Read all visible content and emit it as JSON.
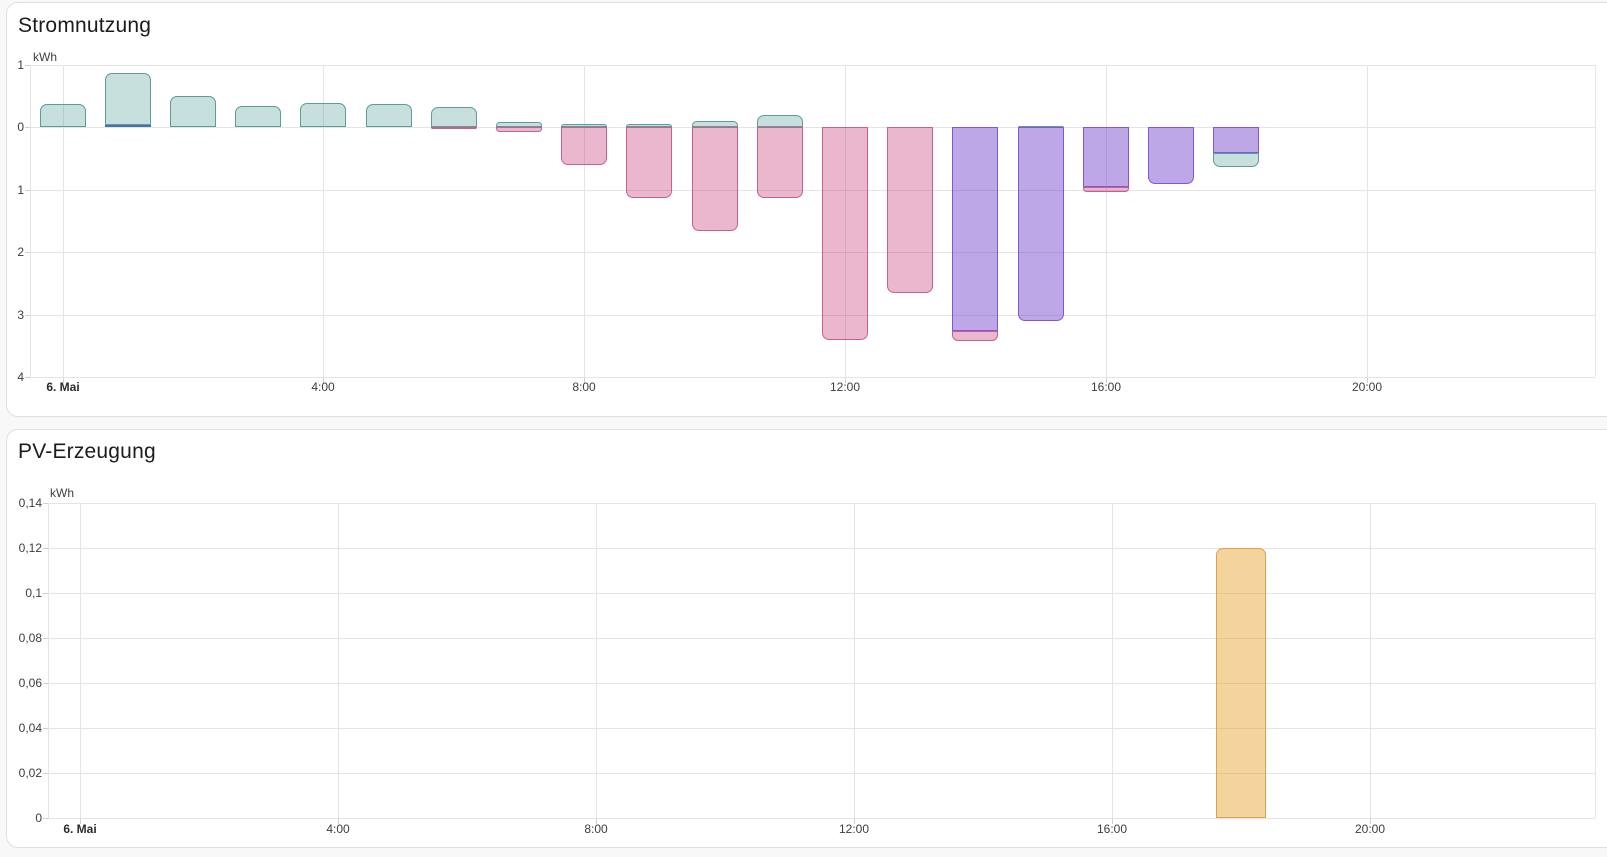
{
  "page": {
    "background": "#f8f8f8",
    "card_background": "#ffffff",
    "card_border": "#e0e0e0",
    "grid_color": "#e4e4e4",
    "tick_text_color": "#3d3d3d",
    "title_color": "#1c1c1c"
  },
  "colors": {
    "teal": {
      "fill": "rgba(80,160,150,0.32)",
      "border": "#5a9e97"
    },
    "blue": {
      "fill": "rgba(50,90,170,0.55)",
      "border": "#4a6fb5"
    },
    "pink": {
      "fill": "rgba(195,50,110,0.35)",
      "border": "#c7608e"
    },
    "purple": {
      "fill": "rgba(110,60,200,0.45)",
      "border": "#8257d6"
    },
    "orange": {
      "fill": "rgba(230,150,20,0.42)",
      "border": "#d8a54b"
    }
  },
  "chart_data": [
    {
      "type": "bar",
      "stacked": true,
      "title": "Stromnutzung",
      "unit": "kWh",
      "ylabel": "kWh",
      "xlabel": "",
      "date_label": "6. Mai",
      "ylim": [
        -4,
        1
      ],
      "xlim_hours": [
        -0.5,
        23.5
      ],
      "grid": true,
      "legend": "none",
      "y_ticks": [
        {
          "value": 1,
          "label": "1"
        },
        {
          "value": 0,
          "label": "0"
        },
        {
          "value": -1,
          "label": "1"
        },
        {
          "value": -2,
          "label": "2"
        },
        {
          "value": -3,
          "label": "3"
        },
        {
          "value": -4,
          "label": "4"
        }
      ],
      "x_ticks": [
        {
          "hour": 0,
          "label": "6. Mai",
          "bold": true
        },
        {
          "hour": 4,
          "label": "4:00"
        },
        {
          "hour": 8,
          "label": "8:00"
        },
        {
          "hour": 12,
          "label": "12:00"
        },
        {
          "hour": 16,
          "label": "16:00"
        },
        {
          "hour": 20,
          "label": "20:00"
        }
      ],
      "bars": [
        {
          "hour": 0,
          "segments": [
            {
              "color": "teal",
              "value": 0.37
            }
          ]
        },
        {
          "hour": 1,
          "segments": [
            {
              "color": "blue",
              "value": 0.04
            },
            {
              "color": "teal",
              "value": 0.83
            }
          ]
        },
        {
          "hour": 2,
          "segments": [
            {
              "color": "teal",
              "value": 0.51
            }
          ]
        },
        {
          "hour": 3,
          "segments": [
            {
              "color": "teal",
              "value": 0.35
            }
          ]
        },
        {
          "hour": 4,
          "segments": [
            {
              "color": "teal",
              "value": 0.39
            }
          ]
        },
        {
          "hour": 5,
          "segments": [
            {
              "color": "teal",
              "value": 0.38
            }
          ]
        },
        {
          "hour": 6,
          "segments": [
            {
              "color": "teal",
              "value": 0.33
            },
            {
              "color": "pink",
              "value": -0.03
            }
          ]
        },
        {
          "hour": 7,
          "segments": [
            {
              "color": "teal",
              "value": 0.08
            },
            {
              "color": "pink",
              "value": -0.08
            }
          ]
        },
        {
          "hour": 8,
          "segments": [
            {
              "color": "teal",
              "value": 0.06
            },
            {
              "color": "pink",
              "value": -0.61
            }
          ]
        },
        {
          "hour": 9,
          "segments": [
            {
              "color": "teal",
              "value": 0.06
            },
            {
              "color": "pink",
              "value": -1.13
            }
          ]
        },
        {
          "hour": 10,
          "segments": [
            {
              "color": "teal",
              "value": 0.11
            },
            {
              "color": "pink",
              "value": -1.66
            }
          ]
        },
        {
          "hour": 11,
          "segments": [
            {
              "color": "teal",
              "value": 0.2
            },
            {
              "color": "pink",
              "value": -1.13
            }
          ]
        },
        {
          "hour": 12,
          "segments": [
            {
              "color": "pink",
              "value": -3.41
            }
          ]
        },
        {
          "hour": 13,
          "segments": [
            {
              "color": "pink",
              "value": -2.66
            }
          ]
        },
        {
          "hour": 14,
          "segments": [
            {
              "color": "purple",
              "value": -3.27
            },
            {
              "color": "pink",
              "value": -0.16
            }
          ]
        },
        {
          "hour": 15,
          "segments": [
            {
              "color": "teal",
              "value": 0.02
            },
            {
              "color": "purple",
              "value": -3.11
            }
          ]
        },
        {
          "hour": 16,
          "segments": [
            {
              "color": "purple",
              "value": -0.95
            },
            {
              "color": "pink",
              "value": -0.08
            }
          ]
        },
        {
          "hour": 17,
          "segments": [
            {
              "color": "purple",
              "value": -0.91
            }
          ]
        },
        {
          "hour": 18,
          "segments": [
            {
              "color": "purple",
              "value": -0.41
            },
            {
              "color": "teal",
              "value": -0.22
            }
          ]
        }
      ]
    },
    {
      "type": "bar",
      "stacked": false,
      "title": "PV-Erzeugung",
      "unit": "kWh",
      "ylabel": "kWh",
      "xlabel": "",
      "date_label": "6. Mai",
      "ylim": [
        0,
        0.14
      ],
      "xlim_hours": [
        -0.5,
        23.5
      ],
      "grid": true,
      "legend": "none",
      "y_ticks": [
        {
          "value": 0.14,
          "label": "0,14"
        },
        {
          "value": 0.12,
          "label": "0,12"
        },
        {
          "value": 0.1,
          "label": "0,1"
        },
        {
          "value": 0.08,
          "label": "0,08"
        },
        {
          "value": 0.06,
          "label": "0,06"
        },
        {
          "value": 0.04,
          "label": "0,04"
        },
        {
          "value": 0.02,
          "label": "0,02"
        },
        {
          "value": 0,
          "label": "0"
        }
      ],
      "x_ticks": [
        {
          "hour": 0,
          "label": "6. Mai",
          "bold": true
        },
        {
          "hour": 4,
          "label": "4:00"
        },
        {
          "hour": 8,
          "label": "8:00"
        },
        {
          "hour": 12,
          "label": "12:00"
        },
        {
          "hour": 16,
          "label": "16:00"
        },
        {
          "hour": 20,
          "label": "20:00"
        }
      ],
      "bars": [
        {
          "hour": 18,
          "segments": [
            {
              "color": "orange",
              "value": 0.12
            }
          ]
        }
      ]
    }
  ]
}
